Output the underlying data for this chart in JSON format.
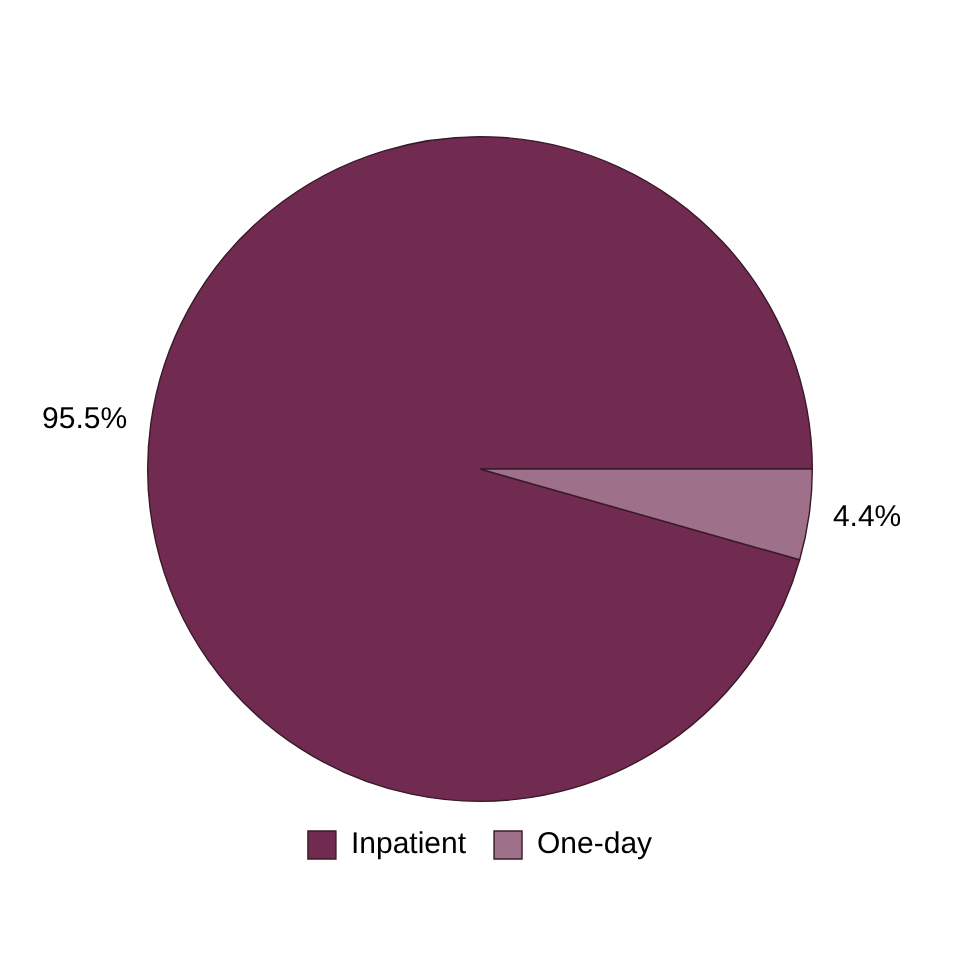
{
  "chart_data": {
    "type": "pie",
    "categories": [
      "Inpatient",
      "One-day"
    ],
    "values": [
      95.5,
      4.4
    ],
    "colors": [
      "#722b50",
      "#9e7089"
    ],
    "value_labels": [
      "95.5%",
      "4.4%"
    ],
    "legend": "bottom"
  }
}
